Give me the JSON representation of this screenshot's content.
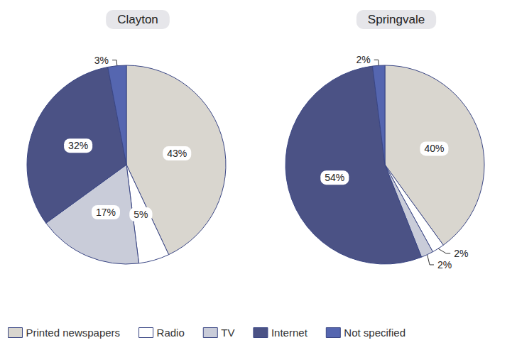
{
  "chart_data": [
    {
      "type": "pie",
      "title": "Clayton",
      "categories": [
        "Printed newspapers",
        "Radio",
        "TV",
        "Internet",
        "Not specified"
      ],
      "values": [
        43,
        5,
        17,
        32,
        3
      ],
      "value_labels": [
        "43%",
        "5%",
        "17%",
        "32%",
        "3%"
      ],
      "colors": [
        "#d9d6cf",
        "#ffffff",
        "#c9ccd9",
        "#4b5285",
        "#5566b0"
      ],
      "data_labels": true,
      "legend": "bottom"
    },
    {
      "type": "pie",
      "title": "Springvale",
      "categories": [
        "Printed newspapers",
        "Radio",
        "TV",
        "Internet",
        "Not specified"
      ],
      "values": [
        40,
        2,
        2,
        54,
        2
      ],
      "value_labels": [
        "40%",
        "2%",
        "2%",
        "54%",
        "2%"
      ],
      "colors": [
        "#d9d6cf",
        "#ffffff",
        "#c9ccd9",
        "#4b5285",
        "#5566b0"
      ],
      "data_labels": true,
      "legend": "bottom"
    }
  ]
}
